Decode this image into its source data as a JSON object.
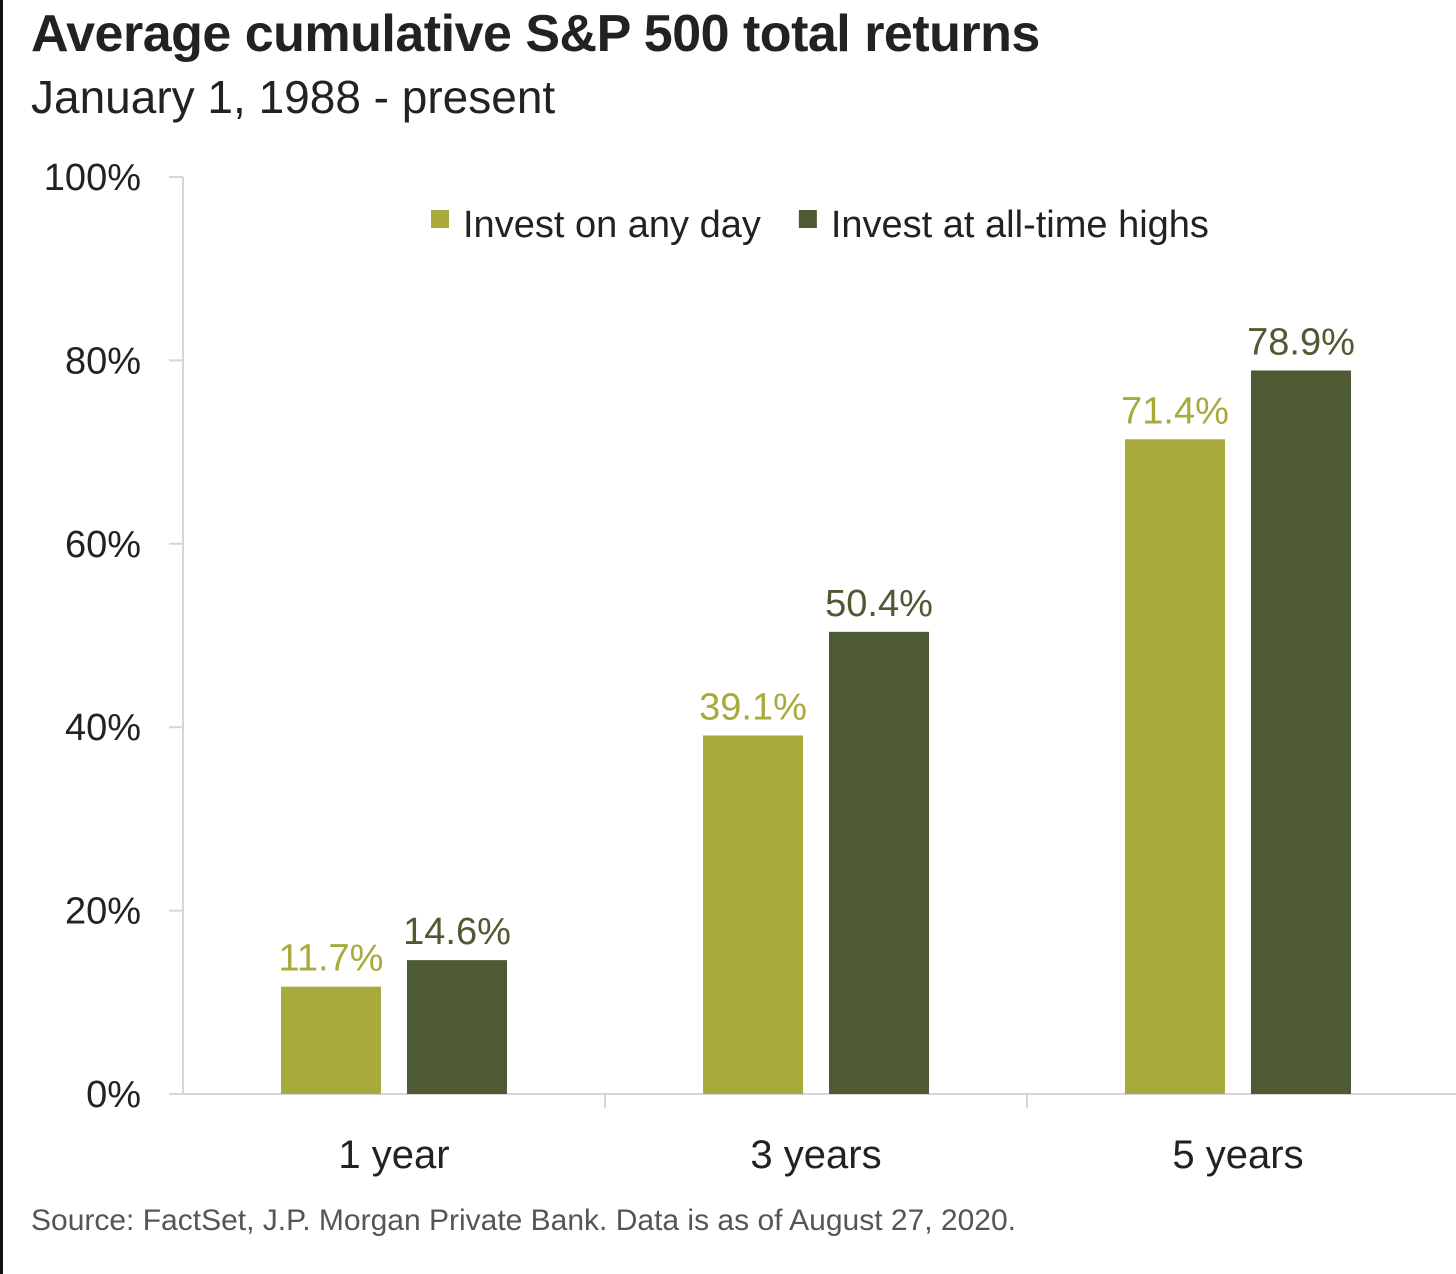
{
  "chart_data": {
    "type": "bar",
    "title": "Average cumulative S&P 500 total returns",
    "subtitle": "January 1, 1988 - present",
    "source": "Source: FactSet, J.P. Morgan Private Bank. Data is as of August 27, 2020.",
    "categories": [
      "1 year",
      "3 years",
      "5 years"
    ],
    "series": [
      {
        "name": "Invest on any day",
        "color": "#a8ab3c",
        "label_color": "#a8ab3c",
        "values": [
          11.7,
          39.1,
          71.4
        ],
        "labels": [
          "11.7%",
          "39.1%",
          "71.4%"
        ]
      },
      {
        "name": "Invest at all-time highs",
        "color": "#4e5a33",
        "label_color": "#4e5a33",
        "values": [
          14.6,
          50.4,
          78.9
        ],
        "labels": [
          "14.6%",
          "50.4%",
          "78.9%"
        ]
      }
    ],
    "ylim": [
      0,
      100
    ],
    "yticks": [
      0,
      20,
      40,
      60,
      80,
      100
    ],
    "ytick_labels": [
      "0%",
      "20%",
      "40%",
      "60%",
      "80%",
      "100%"
    ],
    "xlabel": "",
    "ylabel": "",
    "grid": false,
    "legend_position": "top"
  }
}
